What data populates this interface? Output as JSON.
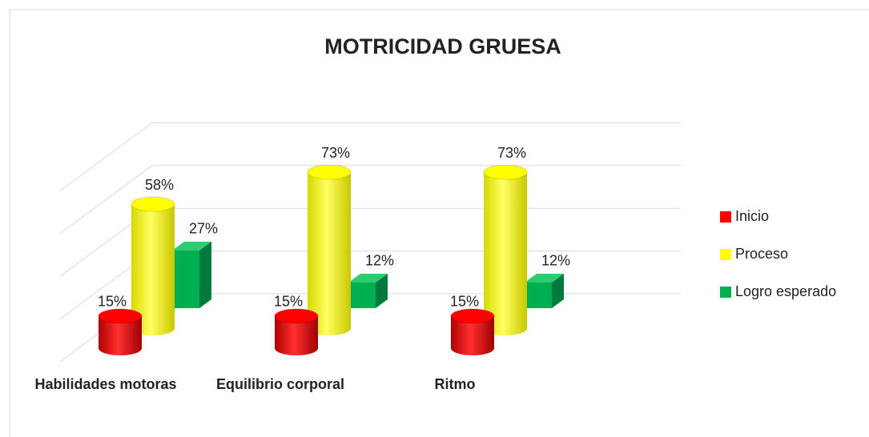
{
  "chart_data": {
    "type": "bar3d",
    "title": "MOTRICIDAD GRUESA",
    "categories": [
      "Habilidades motoras",
      "Equilibrio corporal",
      "Ritmo"
    ],
    "series": [
      {
        "name": "Inicio",
        "color": "#ff0000",
        "values": [
          15,
          15,
          15
        ],
        "value_labels": [
          "15%",
          "15%",
          "15%"
        ]
      },
      {
        "name": "Proceso",
        "color": "#ffff00",
        "values": [
          58,
          73,
          73
        ],
        "value_labels": [
          "58%",
          "73%",
          "73%"
        ]
      },
      {
        "name": "Logro esperado",
        "color": "#00b050",
        "values": [
          27,
          12,
          12
        ],
        "value_labels": [
          "27%",
          "12%",
          "12%"
        ]
      }
    ],
    "ylim": [
      0,
      80
    ],
    "yticks": [
      0,
      20,
      40,
      60,
      80
    ],
    "grid": true,
    "legend": "right"
  }
}
